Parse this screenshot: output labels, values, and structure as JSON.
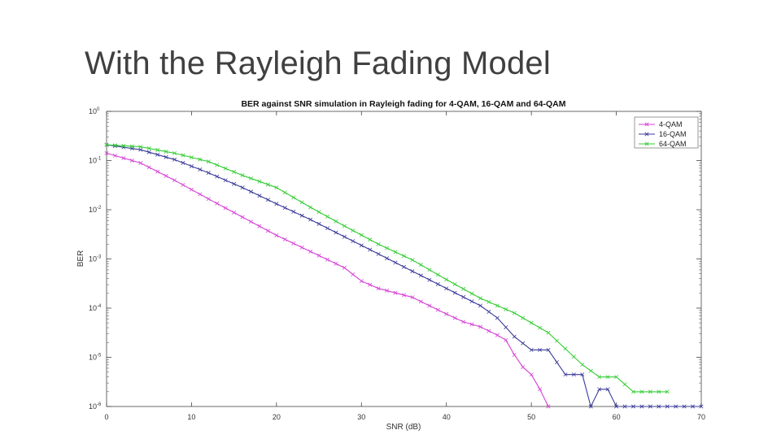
{
  "slide": {
    "title": "With the Rayleigh Fading Model"
  },
  "chart_data": {
    "type": "line",
    "title": "BER against SNR simulation in Rayleigh fading for 4-QAM, 16-QAM and 64-QAM",
    "xlabel": "SNR (dB)",
    "ylabel": "BER",
    "xlim": [
      0,
      70
    ],
    "ylim_log10": [
      -6,
      0
    ],
    "yscale": "log",
    "x_ticks": [
      "0",
      "10",
      "20",
      "30",
      "40",
      "50",
      "60",
      "70"
    ],
    "y_ticks": [
      {
        "base": "10",
        "exp": "0"
      },
      {
        "base": "10",
        "exp": "-1"
      },
      {
        "base": "10",
        "exp": "-2"
      },
      {
        "base": "10",
        "exp": "-3"
      },
      {
        "base": "10",
        "exp": "-4"
      },
      {
        "base": "10",
        "exp": "-5"
      },
      {
        "base": "10",
        "exp": "-6"
      }
    ],
    "legend_position": "top-right",
    "grid": false,
    "series": [
      {
        "name": "4-QAM",
        "color": "#d63fd6",
        "marker": "x",
        "x": [
          0,
          4,
          8,
          12,
          16,
          20,
          24,
          28,
          30,
          32,
          36,
          38,
          40,
          42,
          44,
          46,
          47,
          48,
          49,
          50,
          51,
          52
        ],
        "log10_y": [
          -0.85,
          -1.05,
          -1.4,
          -1.78,
          -2.15,
          -2.52,
          -2.85,
          -3.18,
          -3.45,
          -3.6,
          -3.78,
          -3.95,
          -4.12,
          -4.28,
          -4.38,
          -4.55,
          -4.65,
          -4.95,
          -5.2,
          -5.35,
          -5.65,
          -6.0
        ]
      },
      {
        "name": "16-QAM",
        "color": "#3a3a9a",
        "marker": "x",
        "x": [
          0,
          4,
          8,
          12,
          16,
          20,
          24,
          28,
          32,
          36,
          40,
          44,
          46,
          48,
          50,
          52,
          54,
          56,
          57,
          58,
          59,
          60,
          64,
          70
        ],
        "log10_y": [
          -0.68,
          -0.78,
          -0.98,
          -1.25,
          -1.55,
          -1.88,
          -2.2,
          -2.55,
          -2.9,
          -3.25,
          -3.6,
          -3.95,
          -4.2,
          -4.58,
          -4.85,
          -4.85,
          -5.35,
          -5.35,
          -6.0,
          -5.65,
          -5.65,
          -6.0,
          -6.0,
          -6.0
        ]
      },
      {
        "name": "64-QAM",
        "color": "#33cc33",
        "marker": "x",
        "x": [
          0,
          4,
          8,
          12,
          16,
          20,
          24,
          28,
          32,
          36,
          40,
          44,
          48,
          52,
          56,
          58,
          60,
          62,
          64,
          66
        ],
        "log10_y": [
          -0.68,
          -0.72,
          -0.85,
          -1.02,
          -1.3,
          -1.55,
          -1.95,
          -2.33,
          -2.7,
          -3.02,
          -3.42,
          -3.8,
          -4.1,
          -4.5,
          -5.15,
          -5.4,
          -5.4,
          -5.7,
          -5.7,
          -5.7
        ]
      }
    ]
  }
}
